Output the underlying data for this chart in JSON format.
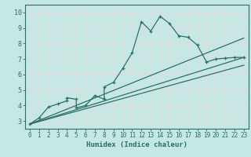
{
  "xlabel": "Humidex (Indice chaleur)",
  "ylabel": "",
  "bg_color": "#c5e8e5",
  "grid_color": "#ddf0ee",
  "line_color": "#2a7068",
  "xlim": [
    -0.5,
    23.5
  ],
  "ylim": [
    2.5,
    10.5
  ],
  "xticks": [
    0,
    1,
    2,
    3,
    4,
    5,
    6,
    7,
    8,
    9,
    10,
    11,
    12,
    13,
    14,
    15,
    16,
    17,
    18,
    19,
    20,
    21,
    22,
    23
  ],
  "yticks": [
    3,
    4,
    5,
    6,
    7,
    8,
    9,
    10
  ],
  "curve_x": [
    0,
    1,
    2,
    3,
    4,
    4,
    5,
    5,
    6,
    7,
    8,
    8,
    9,
    10,
    11,
    12,
    13,
    14,
    15,
    16,
    17,
    18,
    19,
    20,
    21,
    22,
    23
  ],
  "curve_y": [
    2.8,
    3.2,
    3.9,
    4.1,
    4.3,
    4.5,
    4.4,
    3.85,
    4.0,
    4.65,
    4.4,
    5.2,
    5.5,
    6.4,
    7.4,
    9.4,
    8.8,
    9.75,
    9.3,
    8.5,
    8.4,
    7.9,
    6.8,
    7.0,
    7.05,
    7.1,
    7.1
  ],
  "line2_x": [
    0,
    23
  ],
  "line2_y": [
    2.8,
    8.35
  ],
  "line3_x": [
    0,
    23
  ],
  "line3_y": [
    2.8,
    7.1
  ],
  "line4_x": [
    0,
    23
  ],
  "line4_y": [
    2.8,
    6.6
  ]
}
